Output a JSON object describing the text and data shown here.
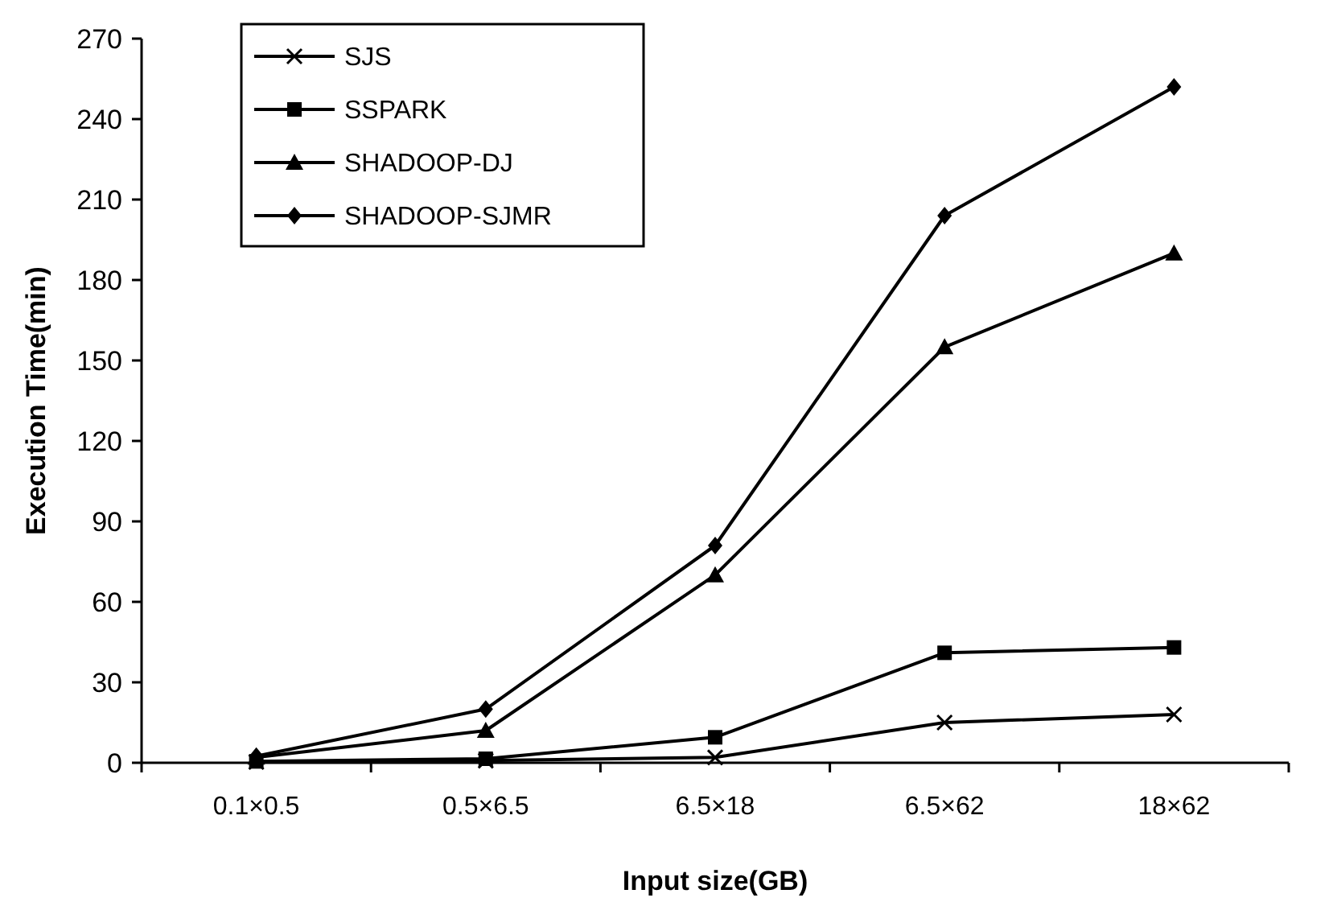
{
  "chart_data": {
    "type": "line",
    "xlabel": "Input size(GB)",
    "ylabel": "Execution Time(min)",
    "categories": [
      "0.1×0.5",
      "0.5×6.5",
      "6.5×18",
      "6.5×62",
      "18×62"
    ],
    "series": [
      {
        "name": "SJS",
        "color": "#000000",
        "marker": "cross",
        "values": [
          0.3,
          0.8,
          2,
          15,
          18
        ]
      },
      {
        "name": "SSPARK",
        "color": "#000000",
        "marker": "square",
        "values": [
          0.5,
          1.5,
          9.5,
          41,
          43
        ]
      },
      {
        "name": "SHADOOP-DJ",
        "color": "#000000",
        "marker": "triangle",
        "values": [
          2,
          12,
          70,
          155,
          190
        ]
      },
      {
        "name": "SHADOOP-SJMR",
        "color": "#000000",
        "marker": "diamond",
        "values": [
          2.5,
          20,
          81,
          204,
          252
        ]
      }
    ],
    "ylim": [
      0,
      270
    ],
    "yticks": [
      0,
      30,
      60,
      90,
      120,
      150,
      180,
      210,
      240,
      270
    ],
    "grid": false,
    "legend": "top left",
    "line_style": "solid"
  }
}
